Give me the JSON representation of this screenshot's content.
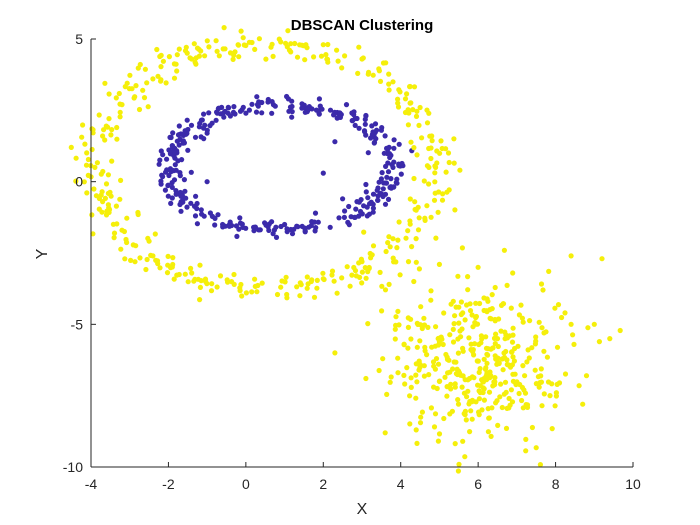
{
  "chart_data": {
    "type": "scatter",
    "title": "DBSCAN Clustering",
    "xlabel": "X",
    "ylabel": "Y",
    "xlim": [
      -4,
      10
    ],
    "ylim": [
      -10,
      5
    ],
    "xticks": [
      -4,
      -2,
      0,
      2,
      4,
      6,
      8,
      10
    ],
    "yticks": [
      -10,
      -5,
      0,
      5
    ],
    "xtick_labels": [
      "-4",
      "-2",
      "0",
      "2",
      "4",
      "6",
      "8",
      "10"
    ],
    "ytick_labels": [
      "-10",
      "-5",
      "0",
      "5"
    ],
    "grid": false,
    "legend": "none",
    "series": [
      {
        "color": "#3b2aaa",
        "shape": "inner-ring",
        "center": [
          0.9,
          0.5
        ],
        "radii": [
          2.9,
          2.2
        ],
        "points": [
          [
            3.8,
            0.5
          ],
          [
            3.7,
            1.2
          ],
          [
            3.5,
            1.8
          ],
          [
            3.1,
            2.3
          ],
          [
            2.6,
            2.7
          ],
          [
            1.9,
            2.9
          ],
          [
            1.1,
            2.9
          ],
          [
            0.3,
            2.7
          ],
          [
            -0.4,
            2.3
          ],
          [
            -1.0,
            1.7
          ],
          [
            -1.5,
            1.1
          ],
          [
            -1.8,
            0.4
          ],
          [
            -1.9,
            -0.2
          ],
          [
            -1.7,
            -0.8
          ],
          [
            -1.3,
            -1.2
          ],
          [
            -0.6,
            -1.5
          ],
          [
            0.2,
            -1.6
          ],
          [
            1.0,
            -1.5
          ],
          [
            1.8,
            -1.1
          ],
          [
            2.5,
            -0.6
          ],
          [
            3.1,
            -0.1
          ],
          [
            3.5,
            0.1
          ],
          [
            0.0,
            2.4
          ],
          [
            2.3,
            1.4
          ],
          [
            -1.0,
            0.0
          ],
          [
            2.0,
            0.3
          ]
        ]
      },
      {
        "color": "#f5ef0a",
        "shape": "outer-ring",
        "center": [
          0.5,
          0.5
        ],
        "radii": [
          4.4,
          4.3
        ],
        "points": [
          [
            4.9,
            0.5
          ],
          [
            4.8,
            1.6
          ],
          [
            4.5,
            2.6
          ],
          [
            3.8,
            3.5
          ],
          [
            3.0,
            4.3
          ],
          [
            2.0,
            4.8
          ],
          [
            0.9,
            4.9
          ],
          [
            -0.2,
            4.8
          ],
          [
            -1.4,
            4.3
          ],
          [
            -2.4,
            3.6
          ],
          [
            -3.2,
            2.7
          ],
          [
            -3.7,
            1.6
          ],
          [
            -3.9,
            0.5
          ],
          [
            -3.7,
            -0.7
          ],
          [
            -3.2,
            -1.7
          ],
          [
            -2.4,
            -2.6
          ],
          [
            -1.4,
            -3.2
          ],
          [
            -0.3,
            -3.6
          ],
          [
            0.9,
            -3.7
          ],
          [
            2.0,
            -3.4
          ],
          [
            3.0,
            -2.8
          ],
          [
            3.8,
            -2.0
          ],
          [
            4.4,
            -1.0
          ]
        ]
      },
      {
        "color": "#f5ef0a",
        "shape": "blob",
        "center": [
          6.0,
          -6.3
        ],
        "spread": [
          1.25,
          1.35
        ],
        "points": [
          [
            5.0,
            -7.0
          ],
          [
            6.5,
            -5.5
          ],
          [
            7.2,
            -6.8
          ],
          [
            5.5,
            -4.4
          ],
          [
            6.8,
            -7.6
          ],
          [
            4.8,
            -5.8
          ],
          [
            6.1,
            -8.0
          ],
          [
            7.7,
            -5.3
          ],
          [
            4.5,
            -6.4
          ],
          [
            3.6,
            -8.8
          ],
          [
            4.4,
            -8.7
          ],
          [
            5.6,
            -9.1
          ],
          [
            2.3,
            -6.0
          ],
          [
            3.1,
            -6.9
          ],
          [
            8.4,
            -2.6
          ],
          [
            9.2,
            -2.7
          ],
          [
            9.4,
            -5.5
          ],
          [
            9.0,
            -5.0
          ],
          [
            8.8,
            -6.8
          ],
          [
            8.7,
            -7.8
          ],
          [
            8.4,
            -5.0
          ],
          [
            3.7,
            -3.6
          ],
          [
            5.0,
            -2.9
          ],
          [
            4.2,
            -2.8
          ],
          [
            6.0,
            -3.0
          ]
        ]
      }
    ]
  }
}
